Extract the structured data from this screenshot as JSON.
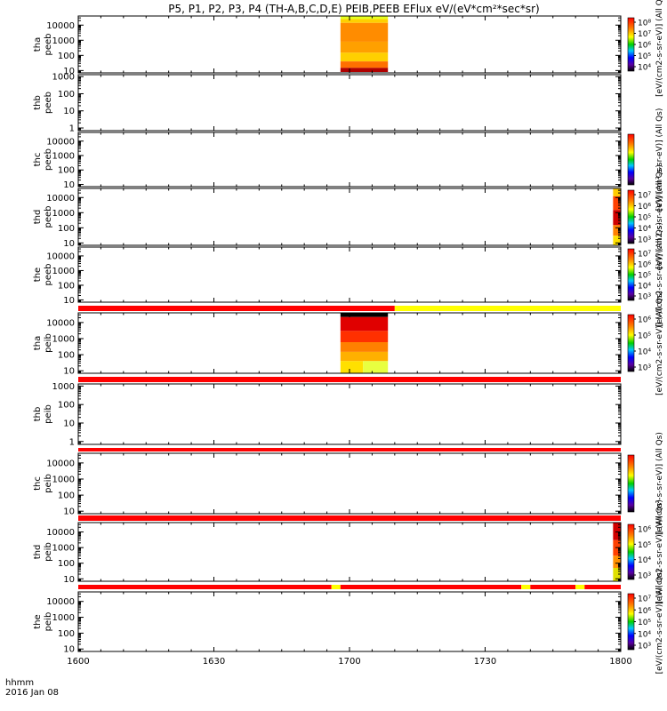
{
  "title": "P5, P1, P2, P3, P4 (TH-A,B,C,D,E) PEIB,PEEB EFlux eV/(eV*cm²*sec*sr)",
  "time_axis": {
    "tick_labels": [
      "1600",
      "1630",
      "1700",
      "1730",
      "1800"
    ],
    "tick_minutes": [
      0,
      30,
      60,
      90,
      120
    ],
    "range_minutes": [
      0,
      120
    ],
    "corner_label_1": "hhmm",
    "corner_label_2": "2016 Jan 08"
  },
  "colorbar_labels": {
    "a": "[eV/(cm2-s-sr-eV)] (All Qs)",
    "b": "[eV/(cm²-s-sr-eV)] (All Qs)"
  },
  "chart_data": {
    "type": "heatmap",
    "x_units": "minutes after 16:00 UT",
    "panels": [
      {
        "name": "tha peeb",
        "label_1": "tha",
        "label_2": "peeb",
        "scale": "log",
        "ylim": [
          7,
          40000
        ],
        "yticks": [
          "10",
          "100",
          "1000",
          "10000"
        ],
        "blocks": [
          {
            "x": [
              58,
              68.5
            ],
            "y": [
              25000,
              40000
            ],
            "color": "#e6ff20"
          },
          {
            "x": [
              58,
              68.5
            ],
            "y": [
              14000,
              25000
            ],
            "color": "#ffd000"
          },
          {
            "x": [
              58,
              68.5
            ],
            "y": [
              800,
              14000
            ],
            "color": "#ff8c00"
          },
          {
            "x": [
              58,
              68.5
            ],
            "y": [
              150,
              800
            ],
            "color": "#ffa000"
          },
          {
            "x": [
              58,
              68.5
            ],
            "y": [
              40,
              150
            ],
            "color": "#ffd000"
          },
          {
            "x": [
              58,
              68.5
            ],
            "y": [
              15,
              40
            ],
            "color": "#ff7000"
          },
          {
            "x": [
              58,
              68.5
            ],
            "y": [
              8,
              15
            ],
            "color": "#b00000"
          }
        ]
      },
      {
        "name": "thb peeb",
        "label_1": "thb",
        "label_2": "peeb",
        "scale": "log",
        "ylim": [
          0.7,
          1300
        ],
        "yticks": [
          "1",
          "10",
          "100",
          "1000"
        ],
        "blocks": []
      },
      {
        "name": "thc peeb",
        "label_1": "thc",
        "label_2": "peeb",
        "scale": "log",
        "ylim": [
          7,
          40000
        ],
        "yticks": [
          "10",
          "100",
          "1000",
          "10000"
        ],
        "blocks": []
      },
      {
        "name": "thd peeb",
        "label_1": "thd",
        "label_2": "peeb",
        "scale": "log",
        "ylim": [
          7,
          40000
        ],
        "yticks": [
          "10",
          "100",
          "1000",
          "10000"
        ],
        "blocks": [
          {
            "x": [
              118.3,
              120
            ],
            "y": [
              12000,
              40000
            ],
            "color": "#ffcc00"
          },
          {
            "x": [
              118.3,
              120
            ],
            "y": [
              1500,
              12000
            ],
            "color": "#ff4000"
          },
          {
            "x": [
              118.3,
              120
            ],
            "y": [
              150,
              1500
            ],
            "color": "#d00000"
          },
          {
            "x": [
              118.3,
              120
            ],
            "y": [
              30,
              150
            ],
            "color": "#ff8000"
          },
          {
            "x": [
              118.3,
              120
            ],
            "y": [
              7,
              30
            ],
            "color": "#ffe000"
          }
        ]
      },
      {
        "name": "the peeb",
        "label_1": "the",
        "label_2": "peeb",
        "scale": "log",
        "ylim": [
          7,
          40000
        ],
        "yticks": [
          "10",
          "100",
          "1000",
          "10000"
        ],
        "blocks": []
      },
      {
        "name": "tha peib",
        "label_1": "tha",
        "label_2": "peib",
        "scale": "log",
        "ylim": [
          7,
          40000
        ],
        "yticks": [
          "10",
          "100",
          "1000",
          "10000"
        ],
        "blocks": [
          {
            "x": [
              58,
              68.5
            ],
            "y": [
              22000,
              40000
            ],
            "color": "#000000"
          },
          {
            "x": [
              58,
              68.5
            ],
            "y": [
              3000,
              22000
            ],
            "color": "#e00000"
          },
          {
            "x": [
              58,
              68.5
            ],
            "y": [
              600,
              3000
            ],
            "color": "#ff3000"
          },
          {
            "x": [
              58,
              68.5
            ],
            "y": [
              150,
              600
            ],
            "color": "#ff8000"
          },
          {
            "x": [
              58,
              68.5
            ],
            "y": [
              40,
              150
            ],
            "color": "#ffb000"
          },
          {
            "x": [
              58,
              63
            ],
            "y": [
              7,
              40
            ],
            "color": "#ffe000"
          },
          {
            "x": [
              63,
              68.5
            ],
            "y": [
              7,
              40
            ],
            "color": "#e8ff40"
          }
        ]
      },
      {
        "name": "thb peib",
        "label_1": "thb",
        "label_2": "peib",
        "scale": "log",
        "ylim": [
          0.7,
          1300
        ],
        "yticks": [
          "1",
          "10",
          "100",
          "1000"
        ],
        "blocks": []
      },
      {
        "name": "thc peib",
        "label_1": "thc",
        "label_2": "peib",
        "scale": "log",
        "ylim": [
          7,
          40000
        ],
        "yticks": [
          "10",
          "100",
          "1000",
          "10000"
        ],
        "blocks": []
      },
      {
        "name": "thd peib",
        "label_1": "thd",
        "label_2": "peib",
        "scale": "log",
        "ylim": [
          7,
          40000
        ],
        "yticks": [
          "10",
          "100",
          "1000",
          "10000"
        ],
        "blocks": [
          {
            "x": [
              118.3,
              120
            ],
            "y": [
              3000,
              40000
            ],
            "color": "#d00000"
          },
          {
            "x": [
              118.3,
              120
            ],
            "y": [
              300,
              3000
            ],
            "color": "#ff4000"
          },
          {
            "x": [
              118.3,
              120
            ],
            "y": [
              50,
              300
            ],
            "color": "#ff9000"
          },
          {
            "x": [
              118.3,
              120
            ],
            "y": [
              7,
              50
            ],
            "color": "#e0e000"
          }
        ]
      },
      {
        "name": "the peib",
        "label_1": "the",
        "label_2": "peib",
        "scale": "log",
        "ylim": [
          7,
          40000
        ],
        "yticks": [
          "10",
          "100",
          "1000",
          "10000"
        ],
        "blocks": []
      }
    ],
    "mode_bars": [
      {
        "after_panel": 4,
        "segments": [
          {
            "x": [
              0,
              70
            ],
            "color": "#ff0000"
          },
          {
            "x": [
              70,
              120
            ],
            "color": "#ffff00"
          }
        ]
      },
      {
        "after_panel": 5,
        "segments": [
          {
            "x": [
              0,
              120
            ],
            "color": "#ff0000"
          }
        ]
      },
      {
        "after_panel": 6,
        "segments": [
          {
            "x": [
              0,
              120
            ],
            "color": "#ff0000"
          }
        ]
      },
      {
        "after_panel": 7,
        "segments": [
          {
            "x": [
              0,
              120
            ],
            "color": "#ff0000"
          }
        ]
      },
      {
        "after_panel": 8,
        "segments": [
          {
            "x": [
              0,
              56
            ],
            "color": "#ff0000"
          },
          {
            "x": [
              56,
              58
            ],
            "color": "#ffff00"
          },
          {
            "x": [
              58,
              98
            ],
            "color": "#ff0000"
          },
          {
            "x": [
              98,
              100
            ],
            "color": "#ffff00"
          },
          {
            "x": [
              100,
              110
            ],
            "color": "#ff0000"
          },
          {
            "x": [
              110,
              112
            ],
            "color": "#ffff00"
          },
          {
            "x": [
              112,
              120
            ],
            "color": "#ff0000"
          }
        ]
      }
    ],
    "colorbars": [
      {
        "panel": 0,
        "labels": [
          "10⁸",
          "10⁷",
          "10⁶",
          "10⁵",
          "10⁴"
        ],
        "units_key": "a"
      },
      {
        "panel": 2,
        "labels": [],
        "units_key": "b"
      },
      {
        "panel": 3,
        "labels": [
          "10⁷",
          "10⁶",
          "10⁵",
          "10⁴",
          "10³"
        ],
        "units_key": "a"
      },
      {
        "panel": 4,
        "labels": [
          "10⁷",
          "10⁶",
          "10⁵",
          "10⁴",
          "10³"
        ],
        "units_key": "a"
      },
      {
        "panel": 5,
        "labels": [
          "10⁶",
          "10⁵",
          "10⁴",
          "10³"
        ],
        "units_key": "a"
      },
      {
        "panel": 7,
        "labels": [],
        "units_key": "b"
      },
      {
        "panel": 8,
        "labels": [
          "10⁶",
          "10⁵",
          "10⁴",
          "10³"
        ],
        "units_key": "a"
      },
      {
        "panel": 9,
        "labels": [
          "10⁷",
          "10⁶",
          "10⁵",
          "10⁴",
          "10³"
        ],
        "units_key": "a"
      }
    ]
  }
}
